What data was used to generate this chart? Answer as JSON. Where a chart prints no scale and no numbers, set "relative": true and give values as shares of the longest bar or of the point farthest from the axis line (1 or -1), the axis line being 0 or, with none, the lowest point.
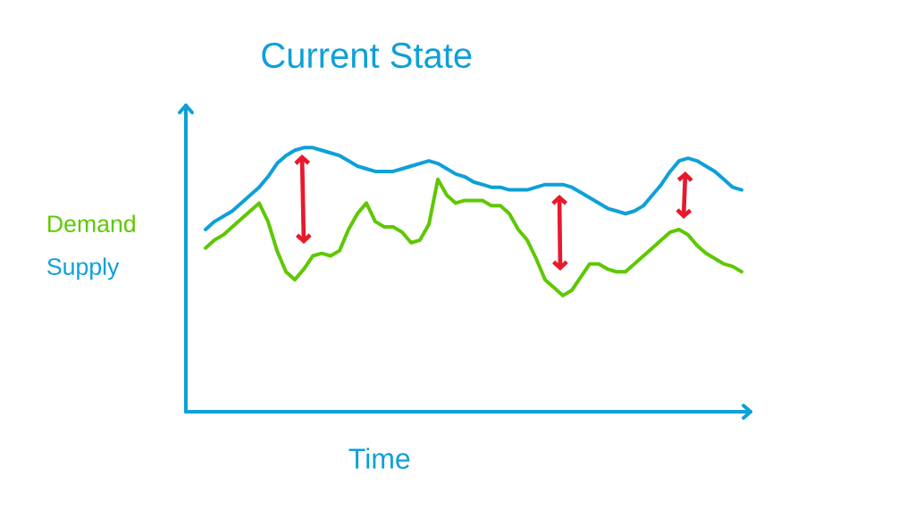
{
  "chart_data": {
    "type": "line",
    "title": "Current State",
    "xlabel": "Time",
    "relative": true,
    "legend": "left",
    "categories": [
      null,
      null,
      null,
      null,
      null,
      null,
      null,
      null,
      null,
      null,
      null,
      null,
      null,
      null,
      null,
      null,
      null,
      null,
      null,
      null,
      null,
      null,
      null,
      null,
      null,
      null,
      null,
      null,
      null,
      null,
      null,
      null,
      null,
      null,
      null,
      null,
      null,
      null,
      null,
      null,
      null,
      null,
      null,
      null,
      null,
      null,
      null,
      null,
      null,
      null,
      null,
      null,
      null,
      null,
      null,
      null,
      null,
      null,
      null,
      null,
      null
    ],
    "series": [
      {
        "name": "Demand",
        "color": "#5ec800",
        "values": [
          0.62,
          0.65,
          0.67,
          0.7,
          0.73,
          0.76,
          0.79,
          0.72,
          0.61,
          0.53,
          0.5,
          0.54,
          0.59,
          0.6,
          0.59,
          0.61,
          0.69,
          0.75,
          0.79,
          0.72,
          0.7,
          0.7,
          0.68,
          0.64,
          0.65,
          0.71,
          0.88,
          0.82,
          0.79,
          0.8,
          0.8,
          0.8,
          0.78,
          0.78,
          0.75,
          0.69,
          0.65,
          0.58,
          0.5,
          0.47,
          0.44,
          0.46,
          0.51,
          0.56,
          0.56,
          0.54,
          0.53,
          0.53,
          0.56,
          0.59,
          0.62,
          0.65,
          0.68,
          0.69,
          0.67,
          0.63,
          0.6,
          0.58,
          0.56,
          0.55,
          0.53
        ]
      },
      {
        "name": "Supply",
        "color": "#0ea0d8",
        "values": [
          0.69,
          0.72,
          0.74,
          0.76,
          0.79,
          0.82,
          0.85,
          0.89,
          0.94,
          0.97,
          0.99,
          1.0,
          1.0,
          0.99,
          0.98,
          0.97,
          0.95,
          0.93,
          0.92,
          0.91,
          0.91,
          0.91,
          0.92,
          0.93,
          0.94,
          0.95,
          0.94,
          0.92,
          0.9,
          0.89,
          0.87,
          0.86,
          0.85,
          0.85,
          0.84,
          0.84,
          0.84,
          0.85,
          0.86,
          0.86,
          0.86,
          0.85,
          0.83,
          0.81,
          0.79,
          0.77,
          0.76,
          0.75,
          0.76,
          0.78,
          0.82,
          0.86,
          0.91,
          0.95,
          0.96,
          0.95,
          0.93,
          0.91,
          0.88,
          0.85,
          0.84
        ]
      }
    ]
  }
}
